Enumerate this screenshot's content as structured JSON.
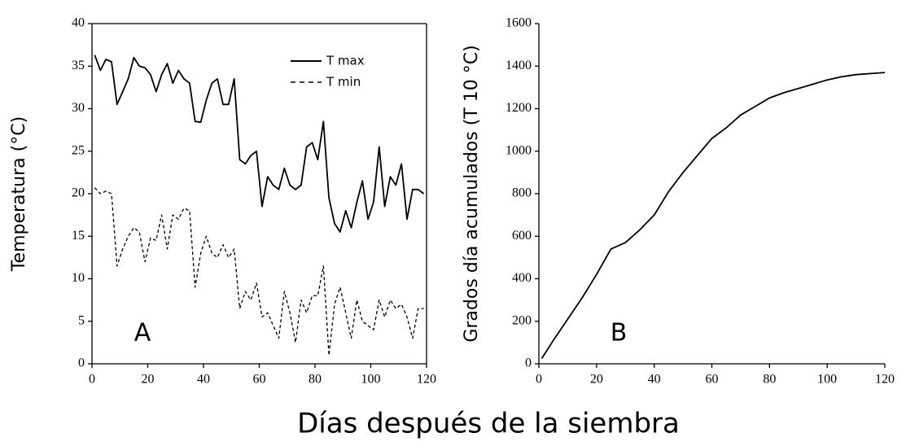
{
  "xlabel": "Días después de la siembra",
  "chart_data": [
    {
      "type": "line",
      "annotation": "A",
      "ylabel": "Temperatura (°C)",
      "box": true,
      "legend": "upper right",
      "xlim": [
        0,
        120
      ],
      "xticks": [
        0,
        20,
        40,
        60,
        80,
        100,
        120
      ],
      "ylim": [
        0,
        40
      ],
      "yticks": [
        0,
        5,
        10,
        15,
        20,
        25,
        30,
        35,
        40
      ],
      "x": [
        1,
        3,
        5,
        7,
        9,
        11,
        13,
        15,
        17,
        19,
        21,
        23,
        25,
        27,
        29,
        31,
        33,
        35,
        37,
        39,
        41,
        43,
        45,
        47,
        49,
        51,
        53,
        55,
        57,
        59,
        61,
        63,
        65,
        67,
        69,
        71,
        73,
        75,
        77,
        79,
        81,
        83,
        85,
        87,
        89,
        91,
        93,
        95,
        97,
        99,
        101,
        103,
        105,
        107,
        109,
        111,
        113,
        115,
        117,
        119
      ],
      "series": [
        {
          "name": "T max",
          "color": "#000000",
          "dash": false,
          "values": [
            36.3,
            34.5,
            35.8,
            35.5,
            30.5,
            32,
            33.5,
            36,
            35,
            34.8,
            34,
            32,
            34,
            35.3,
            33,
            34.5,
            33.5,
            33,
            28.5,
            28.4,
            31,
            33,
            33.5,
            30.5,
            30.5,
            33.5,
            24,
            23.5,
            24.5,
            25,
            18.5,
            22,
            21,
            20.5,
            23,
            21,
            20.5,
            21,
            25.5,
            26,
            24,
            28.5,
            19.5,
            16.5,
            15.5,
            18,
            16,
            19,
            21.5,
            17,
            19,
            25.5,
            18.5,
            22,
            21,
            23.5,
            17,
            20.5,
            20.5,
            20
          ]
        },
        {
          "name": "T min",
          "color": "#000000",
          "dash": true,
          "values": [
            20.7,
            20,
            20.3,
            20,
            11.5,
            13.5,
            15,
            16,
            15.5,
            12,
            14.8,
            14.5,
            17.5,
            13.5,
            17.5,
            17,
            18.3,
            18,
            9,
            13,
            15,
            13,
            12.5,
            14,
            12.5,
            13.5,
            6.5,
            8.5,
            7.5,
            9.5,
            5.5,
            6,
            4.5,
            3,
            8.5,
            6,
            2.5,
            7.5,
            6,
            8,
            8,
            11.5,
            1,
            7,
            9,
            6,
            3,
            7.5,
            5,
            4.5,
            4,
            7.5,
            5.5,
            7.5,
            6.5,
            7,
            5.5,
            3,
            6.5,
            6.5
          ]
        }
      ]
    },
    {
      "type": "line",
      "annotation": "B",
      "ylabel": "Grados día acumulados (T 10 °C)",
      "box": false,
      "xlim": [
        0,
        120
      ],
      "xticks": [
        0,
        20,
        40,
        60,
        80,
        100,
        120
      ],
      "ylim": [
        0,
        1600
      ],
      "yticks": [
        0,
        200,
        400,
        600,
        800,
        1000,
        1200,
        1400,
        1600
      ],
      "x": [
        1,
        5,
        10,
        15,
        20,
        25,
        30,
        35,
        40,
        45,
        50,
        55,
        60,
        65,
        70,
        75,
        80,
        85,
        90,
        95,
        100,
        105,
        110,
        115,
        120
      ],
      "series": [
        {
          "color": "#000000",
          "dash": false,
          "values": [
            25,
            110,
            210,
            310,
            420,
            540,
            570,
            630,
            700,
            810,
            900,
            980,
            1060,
            1110,
            1170,
            1210,
            1250,
            1275,
            1295,
            1315,
            1335,
            1350,
            1360,
            1365,
            1370
          ]
        }
      ]
    }
  ]
}
